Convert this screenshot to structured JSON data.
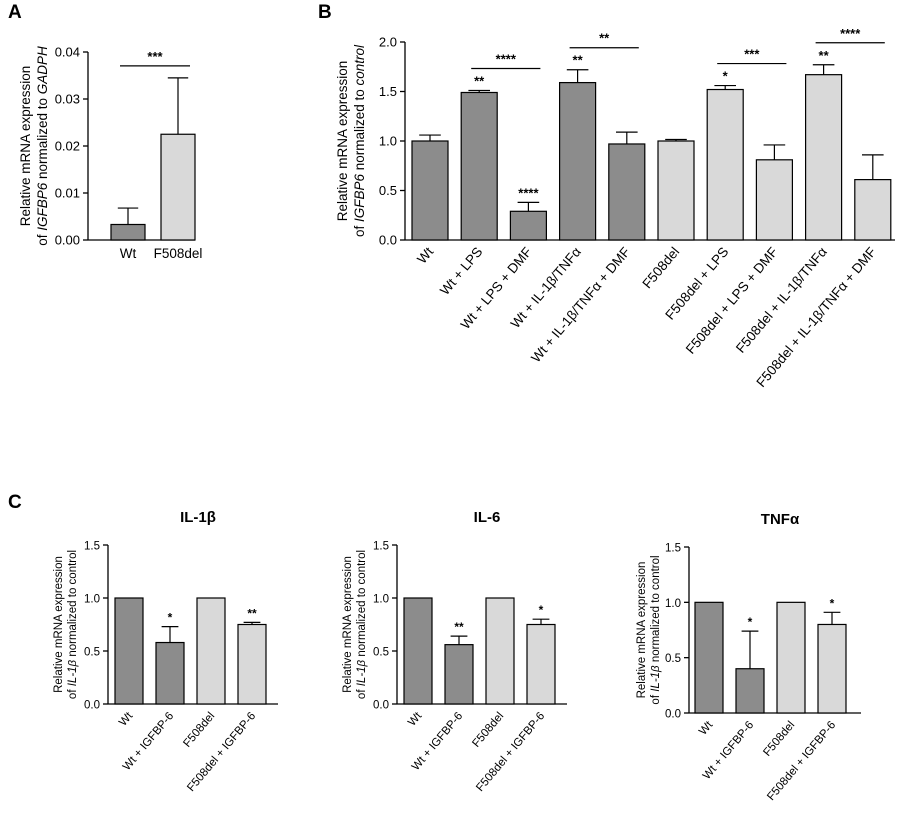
{
  "chart_data": [
    {
      "panel": "A",
      "type": "bar",
      "title": "",
      "ylabel_line1": "Relative mRNA expression",
      "ylabel_line2_prefix": "of ",
      "ylabel_line2_italic1": "IGFBP6",
      "ylabel_line2_mid": " normalized to ",
      "ylabel_line2_italic2": "GADPH",
      "ylim": [
        0,
        0.04
      ],
      "yticks": [
        "0.00",
        "0.01",
        "0.02",
        "0.03",
        "0.04"
      ],
      "yticks_values": [
        0,
        0.01,
        0.02,
        0.03,
        0.04
      ],
      "categories": [
        "Wt",
        "F508del"
      ],
      "values": [
        0.0033,
        0.0225
      ],
      "errors": [
        0.0035,
        0.012
      ],
      "colors": [
        "#8c8c8c",
        "#d9d9d9"
      ],
      "significance": [
        {
          "from": 0,
          "to": 1,
          "label": "***"
        }
      ],
      "bar_labels": [
        "",
        ""
      ]
    },
    {
      "panel": "B",
      "type": "bar",
      "title": "",
      "ylabel_line1": "Relative mRNA expression",
      "ylabel_line2_prefix": "of ",
      "ylabel_line2_italic1": "IGFBP6",
      "ylabel_line2_mid": " normalized to ",
      "ylabel_line2_italic2": "control",
      "ylim": [
        0,
        2.0
      ],
      "yticks": [
        "0.0",
        "0.5",
        "1.0",
        "1.5",
        "2.0"
      ],
      "yticks_values": [
        0,
        0.5,
        1.0,
        1.5,
        2.0
      ],
      "categories": [
        "Wt",
        "Wt + LPS",
        "Wt + LPS + DMF",
        "Wt + IL-1β/TNFα",
        "Wt + IL-1β/TNFα + DMF",
        "F508del",
        "F508del + LPS",
        "F508del + LPS + DMF",
        "F508del + IL-1β/TNFα",
        "F508del + IL-1β/TNFα + DMF"
      ],
      "values": [
        1.0,
        1.49,
        0.29,
        1.59,
        0.97,
        1.0,
        1.52,
        0.81,
        1.67,
        0.61
      ],
      "errors": [
        0.06,
        0.02,
        0.09,
        0.13,
        0.12,
        0.015,
        0.04,
        0.15,
        0.1,
        0.25
      ],
      "colors": [
        "#8c8c8c",
        "#8c8c8c",
        "#8c8c8c",
        "#8c8c8c",
        "#8c8c8c",
        "#d9d9d9",
        "#d9d9d9",
        "#d9d9d9",
        "#d9d9d9",
        "#d9d9d9"
      ],
      "bar_labels": [
        "",
        "**",
        "****",
        "**",
        "",
        "",
        "*",
        "",
        "**",
        ""
      ],
      "significance": [
        {
          "from": 1,
          "to": 2,
          "label": "****"
        },
        {
          "from": 3,
          "to": 4,
          "label": "**"
        },
        {
          "from": 6,
          "to": 7,
          "label": "***"
        },
        {
          "from": 8,
          "to": 9,
          "label": "****"
        }
      ]
    },
    {
      "panel": "C",
      "type": "bar",
      "title": "IL-1β",
      "ylabel_line1": "Relative mRNA expression",
      "ylabel_line2_prefix": "of ",
      "ylabel_line2_italic1": "IL-1β",
      "ylabel_line2_mid": " normalized to control",
      "ylabel_line2_italic2": "",
      "ylim": [
        0,
        1.5
      ],
      "yticks": [
        "0.0",
        "0.5",
        "1.0",
        "1.5"
      ],
      "yticks_values": [
        0,
        0.5,
        1.0,
        1.5
      ],
      "categories": [
        "Wt",
        "Wt + IGFBP-6",
        "F508del",
        "F508del + IGFBP-6"
      ],
      "values": [
        1.0,
        0.58,
        1.0,
        0.75
      ],
      "errors": [
        0,
        0.15,
        0,
        0.02
      ],
      "colors": [
        "#8c8c8c",
        "#8c8c8c",
        "#d9d9d9",
        "#d9d9d9"
      ],
      "bar_labels": [
        "",
        "*",
        "",
        "**"
      ],
      "significance": []
    },
    {
      "panel": "",
      "type": "bar",
      "title": "IL-6",
      "ylabel_line1": "Relative mRNA expression",
      "ylabel_line2_prefix": "of ",
      "ylabel_line2_italic1": "IL-1β",
      "ylabel_line2_mid": " normalized to control",
      "ylabel_line2_italic2": "",
      "ylim": [
        0,
        1.5
      ],
      "yticks": [
        "0.0",
        "0.5",
        "1.0",
        "1.5"
      ],
      "yticks_values": [
        0,
        0.5,
        1.0,
        1.5
      ],
      "categories": [
        "Wt",
        "Wt + IGFBP-6",
        "F508del",
        "F508del + IGFBP-6"
      ],
      "values": [
        1.0,
        0.56,
        1.0,
        0.75
      ],
      "errors": [
        0,
        0.08,
        0,
        0.05
      ],
      "colors": [
        "#8c8c8c",
        "#8c8c8c",
        "#d9d9d9",
        "#d9d9d9"
      ],
      "bar_labels": [
        "",
        "**",
        "",
        "*"
      ],
      "significance": []
    },
    {
      "panel": "",
      "type": "bar",
      "title": "TNFα",
      "ylabel_line1": "Relative mRNA expression",
      "ylabel_line2_prefix": "of ",
      "ylabel_line2_italic1": "IL-1β",
      "ylabel_line2_mid": " normalized to control",
      "ylabel_line2_italic2": "",
      "ylim": [
        0,
        1.5
      ],
      "yticks": [
        "0.0",
        "0.5",
        "1.0",
        "1.5"
      ],
      "yticks_values": [
        0,
        0.5,
        1.0,
        1.5
      ],
      "categories": [
        "Wt",
        "Wt + IGFBP-6",
        "F508del",
        "F508del + IGFBP-6"
      ],
      "values": [
        1.0,
        0.4,
        1.0,
        0.8
      ],
      "errors": [
        0,
        0.34,
        0,
        0.11
      ],
      "colors": [
        "#8c8c8c",
        "#8c8c8c",
        "#d9d9d9",
        "#d9d9d9"
      ],
      "bar_labels": [
        "",
        "*",
        "",
        "*"
      ],
      "significance": []
    }
  ]
}
